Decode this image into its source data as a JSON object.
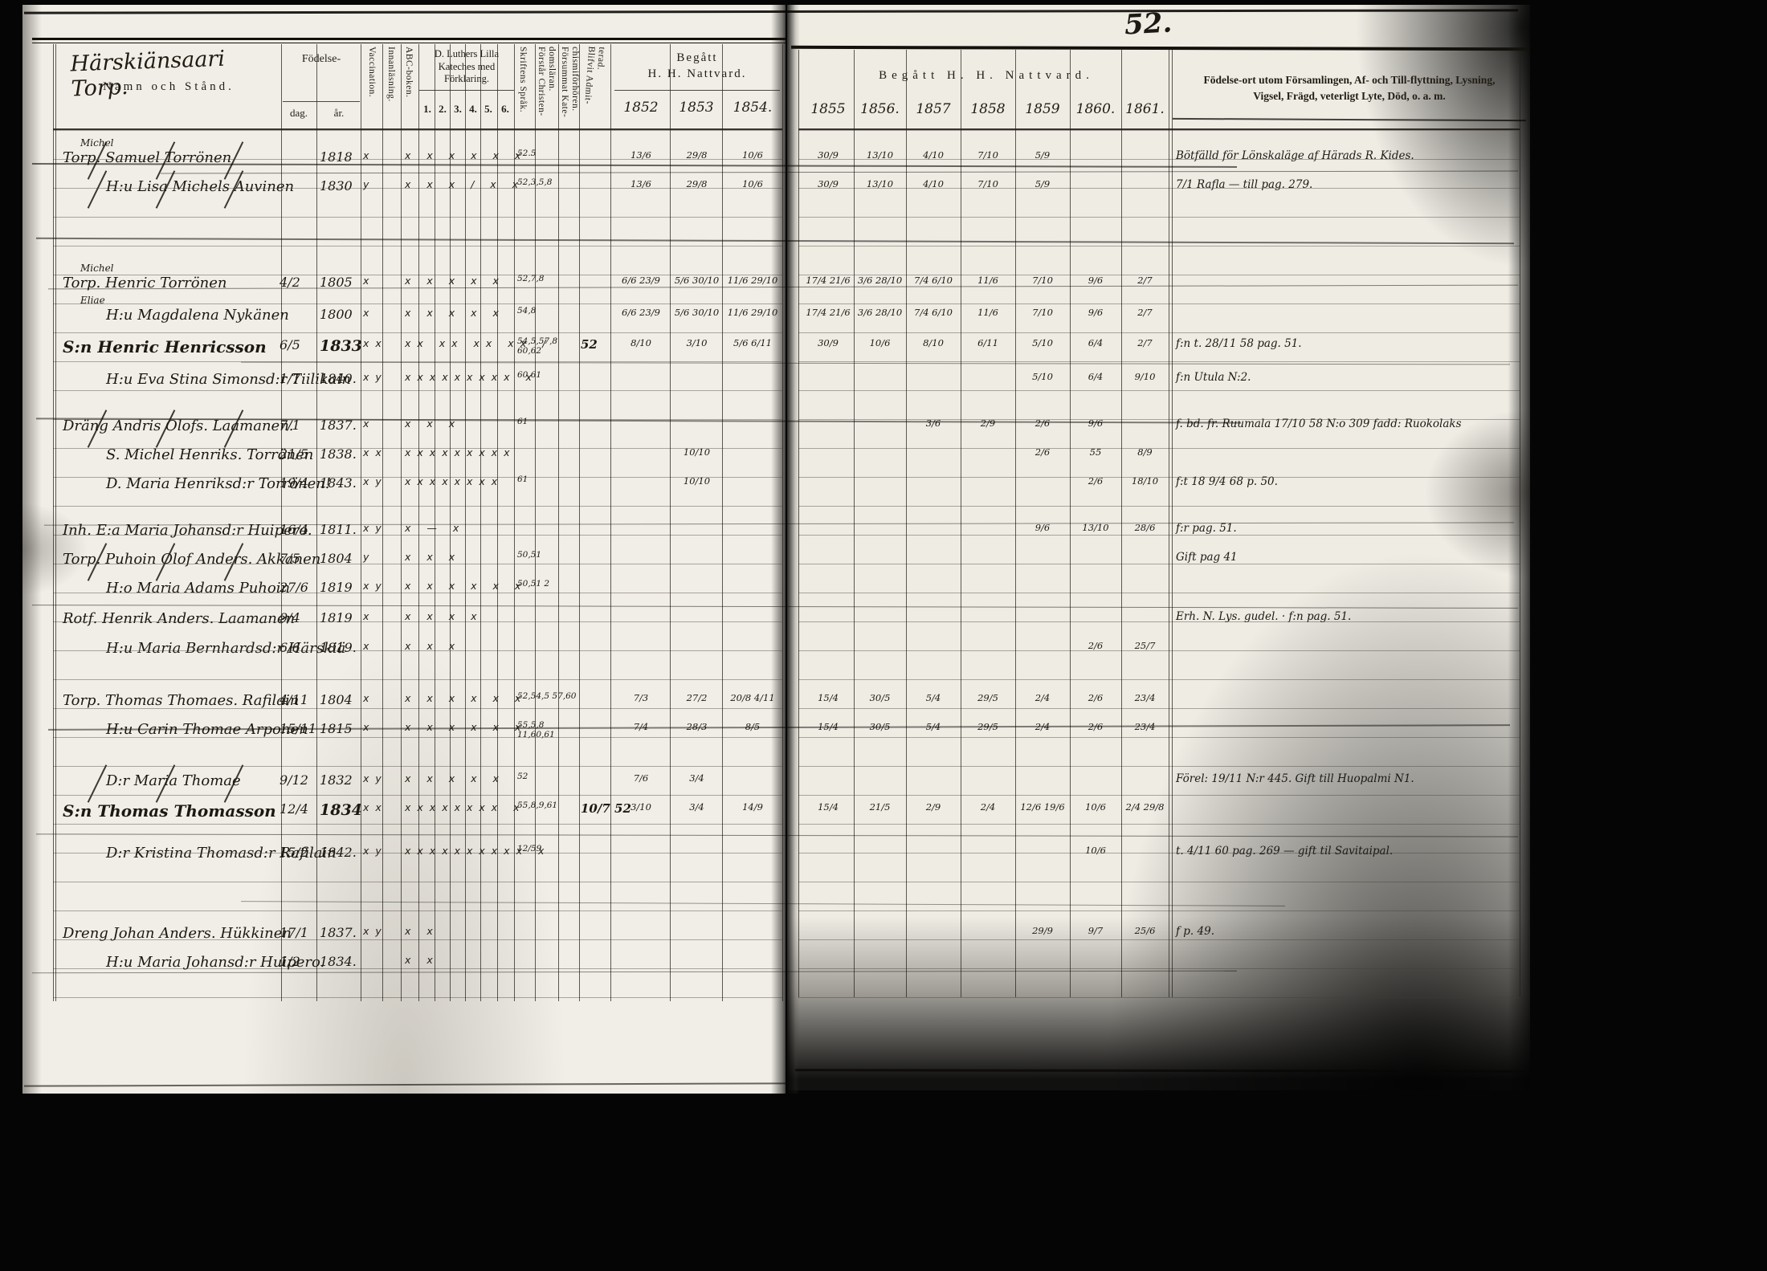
{
  "page_number": "52.",
  "left_page": {
    "title_handwritten": "Härskiänsaari Torp.",
    "title_printed": "Namn och Stånd.",
    "col_birth": "Födelse-",
    "col_birth_day": "dag.",
    "col_birth_year": "år.",
    "col_vaccination": "Vaccination.",
    "col_innanlasning": "Innanläsning.",
    "col_abc": "ABC-boken.",
    "col_catechism": "D. Luthers Lilla Kateches med Förklaring.",
    "catechism_numbers": [
      "1.",
      "2.",
      "3.",
      "4.",
      "5.",
      "6."
    ],
    "col_skriftens": "Skriftens Språk.",
    "col_forstar": "Förstår Christen- domsläran.",
    "col_forsummat": "Försummat Kate- chismiförhören.",
    "col_blifvit": "Blifvit Admit- terad.",
    "communion_line1": "Begått",
    "communion_line2": "H. H. Nattvard.",
    "years": [
      "1852",
      "1853",
      "1854."
    ]
  },
  "right_page": {
    "col_communion": "Begått H. H. Nattvard.",
    "years": [
      "1855",
      "1856.",
      "1857",
      "1858",
      "1859",
      "1860.",
      "1861."
    ],
    "notes_line1": "Födelse-ort utom Församlingen, Af- och Till-flyttning, Lysning,",
    "notes_line2": "Vigsel, Frägd, veterligt Lyte, Död, o. a. m."
  },
  "entries": [
    {
      "name": "Torp. Samuel Torrönen",
      "over": "Michel",
      "bday": "",
      "byear": "1818",
      "vacc": "x",
      "marks": "x x x x x x",
      "forhor": "52.5",
      "adm": "",
      "y52": "13/6",
      "y53": "29/8",
      "y54": "10/6",
      "y55": "30/9",
      "y56": "13/10",
      "y57": "4/10",
      "y58": "7/10",
      "y59": "5/9",
      "y60": "",
      "y61": "",
      "note": "Bötfälld för Lönskaläge af Härads R. Kides.",
      "struck": true,
      "bold": false,
      "indent": false
    },
    {
      "name": "H:u Lisa Michels Auvinen",
      "over": "",
      "bday": "",
      "byear": "1830",
      "vacc": "y",
      "marks": "x x x / x x",
      "forhor": "52,3,5,8",
      "adm": "",
      "y52": "13/6",
      "y53": "29/8",
      "y54": "10/6",
      "y55": "30/9",
      "y56": "13/10",
      "y57": "4/10",
      "y58": "7/10",
      "y59": "5/9",
      "y60": "",
      "y61": "",
      "note": "7/1 Rafla — till pag. 279.",
      "struck": true,
      "bold": false,
      "indent": true
    },
    {
      "name": "Torp. Henric Torrönen",
      "over": "Michel",
      "bday": "4/2",
      "byear": "1805",
      "vacc": "x",
      "marks": "x x x x x",
      "forhor": "52,7,8",
      "adm": "",
      "y52": "6/6 23/9",
      "y53": "5/6 30/10",
      "y54": "11/6 29/10",
      "y55": "17/4 21/6",
      "y56": "3/6 28/10",
      "y57": "7/4 6/10",
      "y58": "11/6",
      "y59": "7/10",
      "y60": "9/6",
      "y61": "2/7",
      "note": "",
      "struck": false,
      "bold": false,
      "indent": false
    },
    {
      "name": "H:u Magdalena Nykänen",
      "over": "Eliae",
      "bday": "",
      "byear": "1800",
      "vacc": "x",
      "marks": "x x x x x",
      "forhor": "54,8",
      "adm": "",
      "y52": "6/6 23/9",
      "y53": "5/6 30/10",
      "y54": "11/6 29/10",
      "y55": "17/4 21/6",
      "y56": "3/6 28/10",
      "y57": "7/4 6/10",
      "y58": "11/6",
      "y59": "7/10",
      "y60": "9/6",
      "y61": "2/7",
      "note": "",
      "struck": false,
      "bold": false,
      "indent": true
    },
    {
      "name": "S:n Henric Henricsson",
      "over": "",
      "bday": "6/5",
      "byear": "1833",
      "vacc": "xx",
      "marks": "xx xx xx xx /",
      "forhor": "54,5,57,8 60,62",
      "adm": "52",
      "y52": "8/10",
      "y53": "3/10",
      "y54": "5/6 6/11",
      "y55": "30/9",
      "y56": "10/6",
      "y57": "8/10",
      "y58": "6/11",
      "y59": "5/10",
      "y60": "6/4",
      "y61": "2/7",
      "note": "f:n t. 28/11 58 pag. 51.",
      "struck": false,
      "bold": true,
      "indent": false
    },
    {
      "name": "H:u Eva Stina Simonsd:r Tiilikain",
      "over": "",
      "bday": "1/7",
      "byear": "1840.",
      "vacc": "xy",
      "marks": "xxxxxxxxx x",
      "forhor": "60,61",
      "adm": "",
      "y52": "",
      "y53": "",
      "y54": "",
      "y55": "",
      "y56": "",
      "y57": "",
      "y58": "",
      "y59": "5/10",
      "y60": "6/4",
      "y61": "9/10",
      "note": "f:n Utula N:2.",
      "struck": false,
      "bold": false,
      "indent": true
    },
    {
      "name": "Dräng Andris Olofs. Laamanen.",
      "over": "",
      "bday": "7/1",
      "byear": "1837.",
      "vacc": "x",
      "marks": "x  x  x",
      "forhor": "61",
      "adm": "",
      "y52": "",
      "y53": "",
      "y54": "",
      "y55": "",
      "y56": "",
      "y57": "3/6",
      "y58": "2/9",
      "y59": "2/6",
      "y60": "9/6",
      "y61": "",
      "note": "f. bd. fr. Ruumala 17/10 58 N:o 309 fadd: Ruokolaks",
      "struck": true,
      "bold": false,
      "indent": false
    },
    {
      "name": "S. Michel Henriks. Torrönen",
      "over": "",
      "bday": "21/5",
      "byear": "1838.",
      "vacc": "xx",
      "marks": "xxxxxxxxx",
      "forhor": "",
      "adm": "",
      "y52": "",
      "y53": "10/10",
      "y54": "",
      "y55": "",
      "y56": "",
      "y57": "",
      "y58": "",
      "y59": "2/6",
      "y60": "55",
      "y61": "8/9",
      "note": "",
      "struck": false,
      "bold": false,
      "indent": true
    },
    {
      "name": "D. Maria Henriksd:r Torrönen!",
      "over": "",
      "bday": "19/4",
      "byear": "1843.",
      "vacc": "xy",
      "marks": "xxxxxxxx",
      "forhor": "61",
      "adm": "",
      "y52": "",
      "y53": "10/10",
      "y54": "",
      "y55": "",
      "y56": "",
      "y57": "",
      "y58": "",
      "y59": "",
      "y60": "2/6",
      "y61": "18/10",
      "note": "f:t 18 9/4 68 p. 50.",
      "struck": false,
      "bold": false,
      "indent": true
    },
    {
      "name": "Inh. E:a Maria Johansd:r Huipero.",
      "over": "",
      "bday": "16/4",
      "byear": "1811.",
      "vacc": "xy",
      "marks": "x  —  x",
      "forhor": "",
      "adm": "",
      "y52": "",
      "y53": "",
      "y54": "",
      "y55": "",
      "y56": "",
      "y57": "",
      "y58": "",
      "y59": "9/6",
      "y60": "13/10",
      "y61": "28/6",
      "note": "f:r pag. 51.",
      "struck": false,
      "bold": false,
      "indent": false
    },
    {
      "name": "Torp. Puhoin Olof Anders. Akkanen",
      "over": "",
      "bday": "7/5",
      "byear": "1804",
      "vacc": "y",
      "marks": "x x x",
      "forhor": "50,51",
      "adm": "",
      "y52": "",
      "y53": "",
      "y54": "",
      "y55": "",
      "y56": "",
      "y57": "",
      "y58": "",
      "y59": "",
      "y60": "",
      "y61": "",
      "note": "Gift pag 41",
      "struck": true,
      "bold": false,
      "indent": false
    },
    {
      "name": "H:o Maria Adams Puhoin",
      "over": "",
      "bday": "27/6",
      "byear": "1819",
      "vacc": "xy",
      "marks": "x x x x x x",
      "forhor": "50,51 2",
      "adm": "",
      "y52": "",
      "y53": "",
      "y54": "",
      "y55": "",
      "y56": "",
      "y57": "",
      "y58": "",
      "y59": "",
      "y60": "",
      "y61": "",
      "note": "",
      "struck": false,
      "bold": false,
      "indent": true
    },
    {
      "name": "Rotf. Henrik Anders. Laamanen",
      "over": "",
      "bday": "9/4",
      "byear": "1819",
      "vacc": "x",
      "marks": "x x x x",
      "forhor": "",
      "adm": "",
      "y52": "",
      "y53": "",
      "y54": "",
      "y55": "",
      "y56": "",
      "y57": "",
      "y58": "",
      "y59": "",
      "y60": "",
      "y61": "",
      "note": "Erh. N. Lys. gudel. · f:n pag. 51.",
      "struck": false,
      "bold": false,
      "indent": false
    },
    {
      "name": "H:u Maria Bernhardsd:r Härskiä",
      "over": "",
      "bday": "6/6",
      "byear": "1819.",
      "vacc": "x",
      "marks": "x x x",
      "forhor": "",
      "adm": "",
      "y52": "",
      "y53": "",
      "y54": "",
      "y55": "",
      "y56": "",
      "y57": "",
      "y58": "",
      "y59": "",
      "y60": "2/6",
      "y61": "25/7",
      "note": "",
      "struck": false,
      "bold": false,
      "indent": true
    },
    {
      "name": "Torp. Thomas Thomaes. Rafilain",
      "over": "",
      "bday": "4/11",
      "byear": "1804",
      "vacc": "x",
      "marks": "x x x x x x",
      "forhor": "52,54,5 57,60",
      "adm": "",
      "y52": "7/3",
      "y53": "27/2",
      "y54": "20/8 4/11",
      "y55": "15/4",
      "y56": "30/5",
      "y57": "5/4",
      "y58": "29/5",
      "y59": "2/4",
      "y60": "2/6",
      "y61": "23/4",
      "note": "",
      "struck": false,
      "bold": false,
      "indent": false
    },
    {
      "name": "H:u Carin Thomae Arponen",
      "over": "",
      "bday": "15/11",
      "byear": "1815",
      "vacc": "x",
      "marks": "x x x x x x",
      "forhor": "55,5,8 11,60,61",
      "adm": "",
      "y52": "7/4",
      "y53": "28/3",
      "y54": "8/5",
      "y55": "15/4",
      "y56": "30/5",
      "y57": "5/4",
      "y58": "29/5",
      "y59": "2/4",
      "y60": "2/6",
      "y61": "23/4",
      "note": "",
      "struck": false,
      "bold": false,
      "indent": true
    },
    {
      "name": "D:r Maria Thomae",
      "over": "",
      "bday": "9/12",
      "byear": "1832",
      "vacc": "xy",
      "marks": "x x x x x",
      "forhor": "52",
      "adm": "",
      "y52": "7/6",
      "y53": "3/4",
      "y54": "",
      "y55": "",
      "y56": "",
      "y57": "",
      "y58": "",
      "y59": "",
      "y60": "",
      "y61": "",
      "note": "Förel: 19/11 N:r 445. Gift till Huopalmi N1.",
      "struck": true,
      "bold": false,
      "indent": true
    },
    {
      "name": "S:n Thomas Thomasson",
      "over": "",
      "bday": "12/4",
      "byear": "1834",
      "vacc": "xx",
      "marks": "xxxxxxxx x",
      "forhor": "55,8,9,61",
      "adm": "10/7 52",
      "y52": "3/10",
      "y53": "3/4",
      "y54": "14/9",
      "y55": "15/4",
      "y56": "21/5",
      "y57": "2/9",
      "y58": "2/4",
      "y59": "12/6 19/6",
      "y60": "10/6",
      "y61": "2/4 29/8",
      "note": "",
      "struck": false,
      "bold": true,
      "indent": false
    },
    {
      "name": "D:r Kristina Thomasd:r Rafilain",
      "over": "",
      "bday": "15/2",
      "byear": "1842.",
      "vacc": "xy",
      "marks": "xxxxxxxxxx x",
      "forhor": "12/59",
      "adm": "",
      "y52": "",
      "y53": "",
      "y54": "",
      "y55": "",
      "y56": "",
      "y57": "",
      "y58": "",
      "y59": "",
      "y60": "10/6",
      "y61": "",
      "note": "t. 4/11 60 pag. 269 — gift til Savitaipal.",
      "struck": false,
      "bold": false,
      "indent": true
    },
    {
      "name": "Dreng Johan Anders. Hükkinen",
      "over": "",
      "bday": "17/1",
      "byear": "1837.",
      "vacc": "xy",
      "marks": "x  x",
      "forhor": "",
      "adm": "",
      "y52": "",
      "y53": "",
      "y54": "",
      "y55": "",
      "y56": "",
      "y57": "",
      "y58": "",
      "y59": "29/9",
      "y60": "9/7",
      "y61": "25/6",
      "note": "f p. 49.",
      "struck": false,
      "bold": false,
      "indent": false
    },
    {
      "name": "H:u Maria Johansd:r Huipero.",
      "over": "",
      "bday": "1/2",
      "byear": "1834.",
      "vacc": "",
      "marks": "x  x",
      "forhor": "",
      "adm": "",
      "y52": "",
      "y53": "",
      "y54": "",
      "y55": "",
      "y56": "",
      "y57": "",
      "y58": "",
      "y59": "",
      "y60": "",
      "y61": "",
      "note": "",
      "struck": false,
      "bold": false,
      "indent": true
    }
  ]
}
